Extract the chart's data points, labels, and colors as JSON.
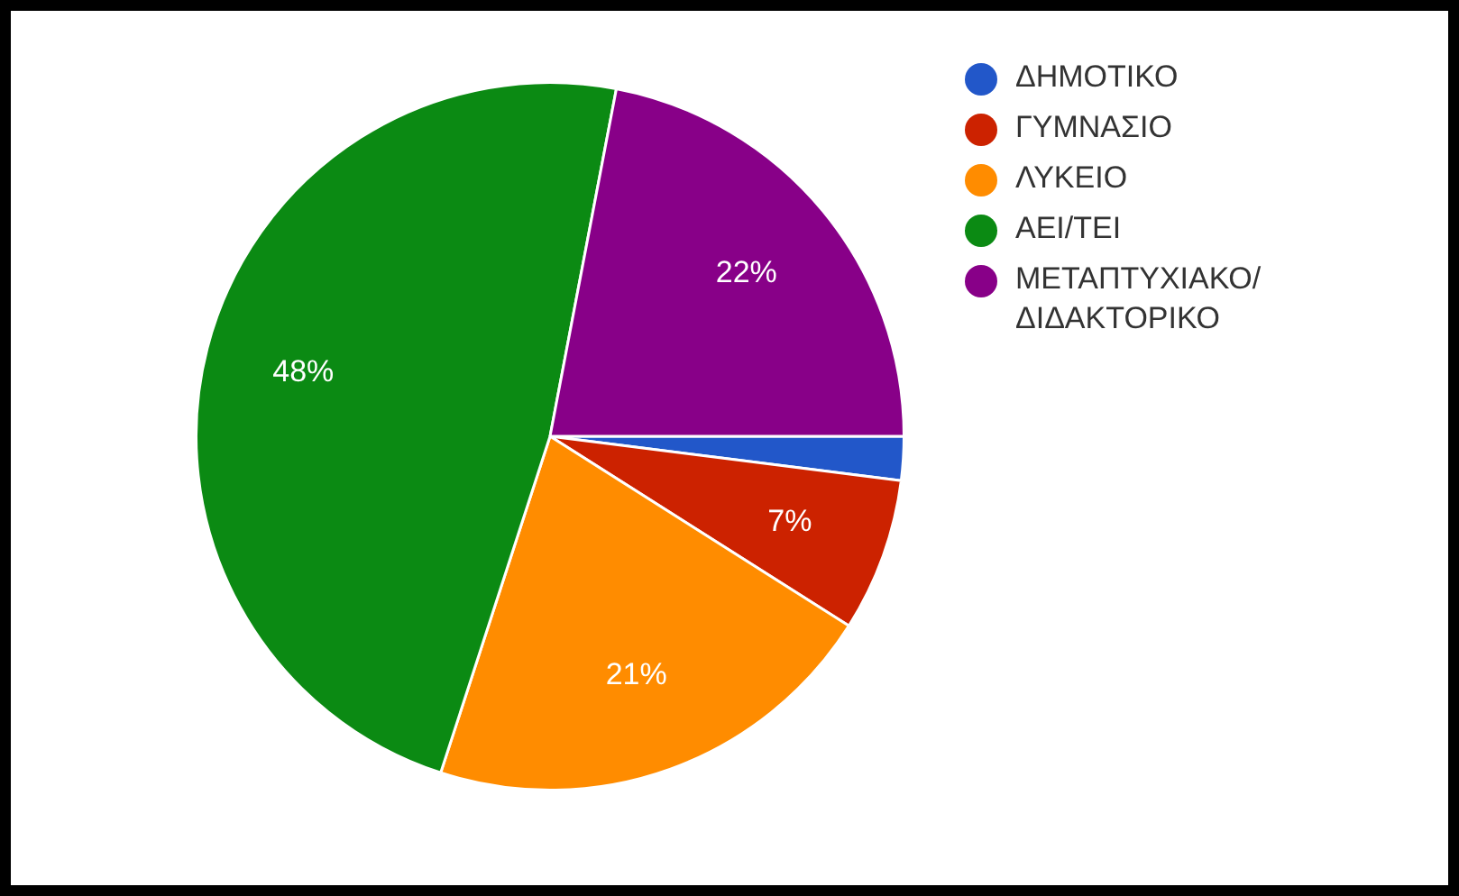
{
  "chart_data": {
    "type": "pie",
    "categories": [
      "ΔΗΜΟΤΙΚΟ",
      "ΓΥΜΝΑΣΙΟ",
      "ΛΥΚΕΙΟ",
      "ΑΕΙ/ΤΕΙ",
      "ΜΕΤΑΠΤΥΧΙΑΚΟ/ΔΙΔΑΚΤΟΡΙΚΟ"
    ],
    "values": [
      2,
      7,
      21,
      48,
      22
    ],
    "colors": [
      "#2257c9",
      "#cc2200",
      "#ff8c00",
      "#0b8a13",
      "#880088"
    ],
    "value_labels": [
      null,
      "7%",
      "21%",
      "48%",
      "22%"
    ],
    "legend": "top right"
  }
}
